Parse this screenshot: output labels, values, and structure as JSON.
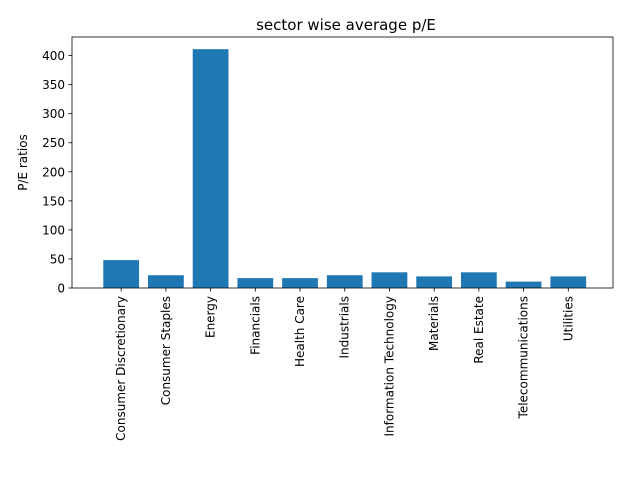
{
  "chart_data": {
    "type": "bar",
    "title": "sector wise average p/E",
    "xlabel": "",
    "ylabel": "P/E ratios",
    "categories": [
      "Consumer Discretionary",
      "Consumer Staples",
      "Energy",
      "Financials",
      "Health Care",
      "Industrials",
      "Information Technology",
      "Materials",
      "Real Estate",
      "Telecommunications",
      "Utilities"
    ],
    "values": [
      48,
      22,
      411,
      17,
      17,
      22,
      27,
      20,
      27,
      11,
      20
    ],
    "ylim": [
      0,
      432
    ],
    "yticks": [
      0,
      50,
      100,
      150,
      200,
      250,
      300,
      350,
      400
    ],
    "bar_color": "#1f77b4",
    "grid": false,
    "legend": false
  }
}
